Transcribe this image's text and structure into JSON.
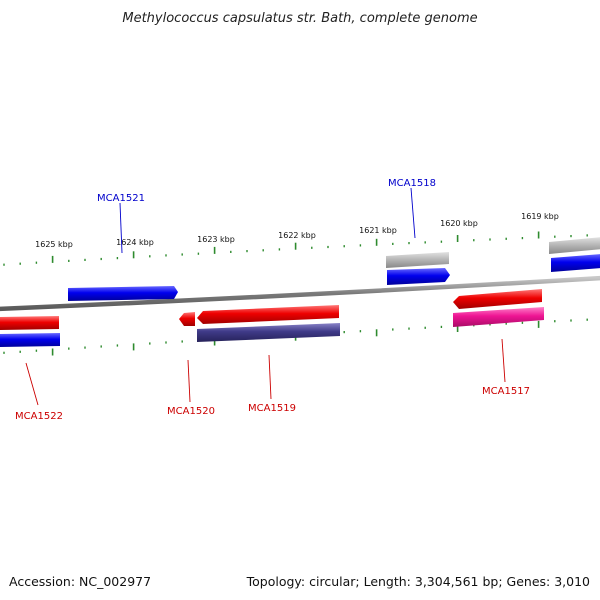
{
  "title": "Methylococcus capsulatus str. Bath, complete genome",
  "footer": {
    "accession": "Accession: NC_002977",
    "summary": "Topology: circular; Length: 3,304,561 bp; Genes: 3,010"
  },
  "colors": {
    "backbone": "#8a8a8a",
    "tick": "#2e8b2e",
    "forward_cds": "#0000ee",
    "reverse_cds": "#ee0000",
    "pseudo_gene": "#b8b8b8",
    "rna_gene": "#ee1493",
    "other_gene": "#3f3a88",
    "label_forward": "#0000cc",
    "label_reverse": "#cc0000"
  },
  "scale_labels": [
    "1625 kbp",
    "1624 kbp",
    "1623 kbp",
    "1622 kbp",
    "1621 kbp",
    "1620 kbp",
    "1619 kbp"
  ],
  "gene_labels": [
    {
      "id": "MCA1521",
      "strand": "forward"
    },
    {
      "id": "MCA1518",
      "strand": "forward"
    },
    {
      "id": "MCA1522",
      "strand": "reverse"
    },
    {
      "id": "MCA1520",
      "strand": "reverse"
    },
    {
      "id": "MCA1519",
      "strand": "reverse"
    },
    {
      "id": "MCA1517",
      "strand": "reverse"
    }
  ]
}
